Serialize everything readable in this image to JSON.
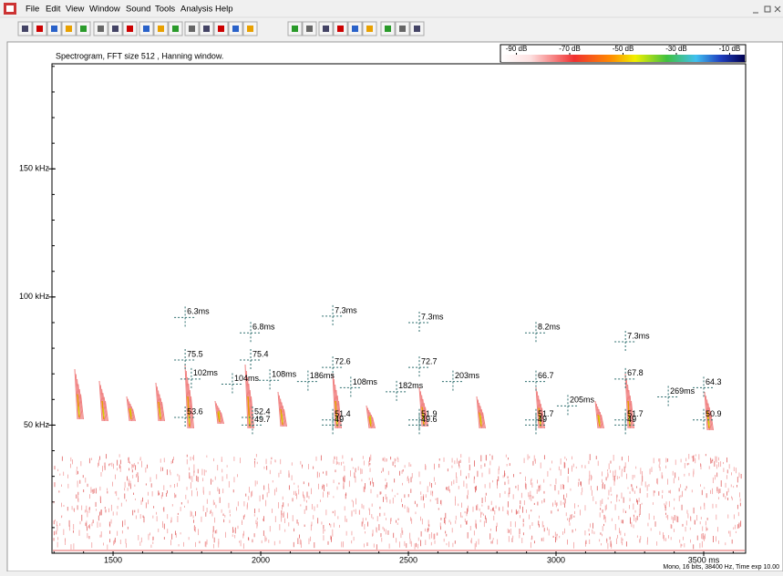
{
  "menu": [
    "File",
    "Edit",
    "View",
    "Window",
    "Sound",
    "Tools",
    "Analysis",
    "Help"
  ],
  "plot": {
    "type": "spectrogram",
    "title": "Spectrogram, FFT size 512 , Hanning window.",
    "xlim": [
      1293,
      3642
    ],
    "xticks": [
      1500,
      2000,
      2500,
      3000,
      {
        "value": 3500,
        "label": "3500 ms"
      }
    ],
    "ylim": [
      0,
      191
    ],
    "yticks": [
      {
        "value": 50,
        "label": "50 kHz"
      },
      {
        "value": 100,
        "label": "100 kHz"
      },
      {
        "value": 150,
        "label": "150 kHz"
      }
    ],
    "colorbar": {
      "clim": [
        -96,
        -4
      ],
      "ticks": [
        {
          "value": -90,
          "label": "-90 dB"
        },
        {
          "value": -70,
          "label": "-70 dB"
        },
        {
          "value": -50,
          "label": "-50 dB"
        },
        {
          "value": -30,
          "label": "-30 dB"
        },
        {
          "value": -10,
          "label": "-10 dB"
        }
      ]
    },
    "annotations": [
      {
        "text": "6.3ms",
        "x": 1744,
        "y": 92
      },
      {
        "text": "75.5",
        "x": 1744,
        "y": 75.4
      },
      {
        "text": "102ms",
        "x": 1765,
        "y": 68
      },
      {
        "text": "53.6",
        "x": 1744,
        "y": 53
      },
      {
        "text": "6.8ms",
        "x": 1966,
        "y": 86
      },
      {
        "text": "75.4",
        "x": 1966,
        "y": 75.4
      },
      {
        "text": "104ms",
        "x": 1904,
        "y": 66
      },
      {
        "text": "108ms",
        "x": 2031,
        "y": 67.5
      },
      {
        "text": "52.4",
        "x": 1972,
        "y": 53
      },
      {
        "text": "49.7",
        "x": 1972,
        "y": 50
      },
      {
        "text": "7.3ms",
        "x": 2244,
        "y": 92.5
      },
      {
        "text": "72.6",
        "x": 2244,
        "y": 72.5
      },
      {
        "text": "186ms",
        "x": 2160,
        "y": 67
      },
      {
        "text": "108ms",
        "x": 2305,
        "y": 64.6
      },
      {
        "text": "51.4",
        "x": 2244,
        "y": 52
      },
      {
        "text": "49",
        "x": 2244,
        "y": 50
      },
      {
        "text": "7.3ms",
        "x": 2537,
        "y": 90
      },
      {
        "text": "72.7",
        "x": 2537,
        "y": 72.5
      },
      {
        "text": "182ms",
        "x": 2460,
        "y": 63
      },
      {
        "text": "203ms",
        "x": 2651,
        "y": 67
      },
      {
        "text": "51.9",
        "x": 2537,
        "y": 52
      },
      {
        "text": "49.6",
        "x": 2537,
        "y": 50
      },
      {
        "text": "8.2ms",
        "x": 2932,
        "y": 86
      },
      {
        "text": "66.7",
        "x": 2932,
        "y": 67
      },
      {
        "text": "205ms",
        "x": 3040,
        "y": 57.5
      },
      {
        "text": "51.7",
        "x": 2932,
        "y": 52
      },
      {
        "text": "49",
        "x": 2932,
        "y": 50
      },
      {
        "text": "7.3ms",
        "x": 3235,
        "y": 82.5
      },
      {
        "text": "67.8",
        "x": 3235,
        "y": 68
      },
      {
        "text": "269ms",
        "x": 3380,
        "y": 61
      },
      {
        "text": "51.7",
        "x": 3235,
        "y": 52
      },
      {
        "text": "49",
        "x": 3235,
        "y": 50
      },
      {
        "text": "64.3",
        "x": 3500,
        "y": 64.6
      },
      {
        "text": "50.9",
        "x": 3500,
        "y": 52
      }
    ]
  },
  "status": "Mono, 16 bits, 38400 Hz, Time exp 10.00"
}
